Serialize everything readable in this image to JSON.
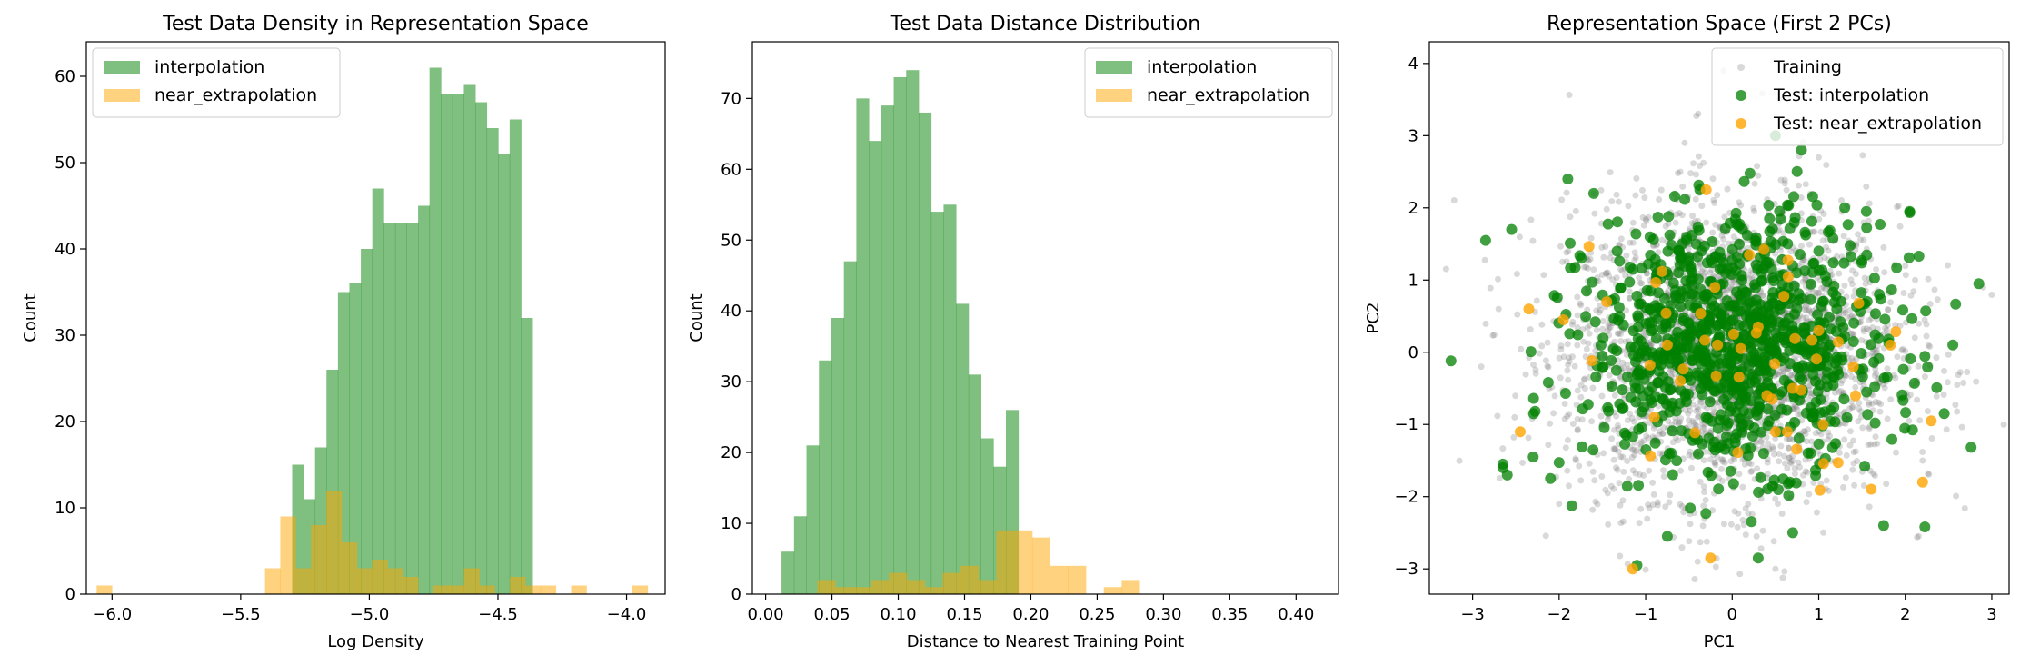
{
  "chart_data": [
    {
      "type": "histogram",
      "title": "Test Data Density in Representation Space",
      "xlabel": "Log Density",
      "ylabel": "Count",
      "xlim": [
        -6.1,
        -3.85
      ],
      "ylim": [
        0,
        64
      ],
      "xticks": [
        -6.0,
        -5.5,
        -5.0,
        -4.5,
        -4.0
      ],
      "xtick_labels": [
        "−6.0",
        "−5.5",
        "−5.0",
        "−4.5",
        "−4.0"
      ],
      "yticks": [
        0,
        10,
        20,
        30,
        40,
        50,
        60
      ],
      "ytick_labels": [
        "0",
        "10",
        "20",
        "30",
        "40",
        "50",
        "60"
      ],
      "legend_position": "top-left",
      "series": [
        {
          "name": "interpolation",
          "color": "#008000",
          "bin_start": -5.3,
          "bin_width": 0.0445,
          "values": [
            15,
            11,
            17,
            26,
            35,
            36,
            40,
            47,
            43,
            43,
            43,
            45,
            61,
            58,
            58,
            59,
            57,
            54,
            51,
            55,
            32
          ]
        },
        {
          "name": "near_extrapolation",
          "color": "#FFA500",
          "bin_start": -6.06,
          "bin_width": 0.0595,
          "values": [
            1,
            0,
            0,
            0,
            0,
            0,
            0,
            0,
            0,
            0,
            0,
            3,
            9,
            3,
            8,
            12,
            6,
            3,
            4,
            3,
            2,
            0,
            1,
            1,
            3,
            1,
            0,
            2,
            1,
            1,
            0,
            1,
            0,
            0,
            0,
            1
          ]
        }
      ]
    },
    {
      "type": "histogram",
      "title": "Test Data Distance Distribution",
      "xlabel": "Distance to Nearest Training Point",
      "ylabel": "Count",
      "xlim": [
        -0.01,
        0.432
      ],
      "ylim": [
        0,
        78
      ],
      "xticks": [
        0.0,
        0.05,
        0.1,
        0.15,
        0.2,
        0.25,
        0.3,
        0.35,
        0.4
      ],
      "xtick_labels": [
        "0.00",
        "0.05",
        "0.10",
        "0.15",
        "0.20",
        "0.25",
        "0.30",
        "0.35",
        "0.40"
      ],
      "yticks": [
        0,
        10,
        20,
        30,
        40,
        50,
        60,
        70
      ],
      "ytick_labels": [
        "0",
        "10",
        "20",
        "30",
        "40",
        "50",
        "60",
        "70"
      ],
      "legend_position": "top-right",
      "series": [
        {
          "name": "interpolation",
          "color": "#008000",
          "bin_start": 0.012,
          "bin_width": 0.0094,
          "values": [
            6,
            11,
            21,
            33,
            39,
            47,
            70,
            64,
            69,
            73,
            74,
            68,
            54,
            55,
            41,
            31,
            22,
            18,
            26
          ]
        },
        {
          "name": "near_extrapolation",
          "color": "#FFA500",
          "bin_start": 0.012,
          "bin_width": 0.0135,
          "values": [
            0,
            0,
            2,
            1,
            1,
            2,
            3,
            2,
            1,
            3,
            4,
            2,
            9,
            9,
            8,
            4,
            4,
            0,
            1,
            2
          ]
        }
      ]
    },
    {
      "type": "scatter",
      "title": "Representation Space (First 2 PCs)",
      "xlabel": "PC1",
      "ylabel": "PC2",
      "xlim": [
        -3.5,
        3.2
      ],
      "ylim": [
        -3.35,
        4.3
      ],
      "xticks": [
        -3,
        -2,
        -1,
        0,
        1,
        2,
        3
      ],
      "xtick_labels": [
        "−3",
        "−2",
        "−1",
        "0",
        "1",
        "2",
        "3"
      ],
      "yticks": [
        -3,
        -2,
        -1,
        0,
        1,
        2,
        3,
        4
      ],
      "ytick_labels": [
        "−3",
        "−2",
        "−1",
        "0",
        "1",
        "2",
        "3",
        "4"
      ],
      "legend_position": "top-right",
      "series": [
        {
          "name": "Training",
          "color": "#808080",
          "count": 3000,
          "center": [
            0,
            0
          ],
          "sd": [
            0.95,
            1.0
          ],
          "points": [
            [
              -0.1,
              3.9
            ],
            [
              0.55,
              3.5
            ],
            [
              -0.55,
              2.9
            ],
            [
              1.0,
              2.7
            ],
            [
              -1.6,
              2.2
            ],
            [
              2.9,
              0.9
            ],
            [
              2.6,
              -0.45
            ],
            [
              -2.9,
              -0.2
            ],
            [
              -2.7,
              0.6
            ],
            [
              0.5,
              -3.0
            ],
            [
              -0.4,
              -2.9
            ],
            [
              2.2,
              -1.5
            ],
            [
              -2.0,
              -2.1
            ]
          ]
        },
        {
          "name": "Test: interpolation",
          "color": "#008000",
          "count": 1000,
          "center": [
            0.05,
            0.15
          ],
          "sd": [
            0.85,
            0.85
          ],
          "points": [
            [
              -3.25,
              -0.12
            ],
            [
              2.85,
              0.95
            ],
            [
              -2.85,
              1.55
            ],
            [
              -2.55,
              1.7
            ],
            [
              -1.9,
              2.4
            ],
            [
              -1.6,
              2.2
            ],
            [
              -2.65,
              -1.55
            ],
            [
              -2.65,
              -1.6
            ],
            [
              -2.6,
              -1.7
            ],
            [
              -1.1,
              -2.95
            ],
            [
              -0.75,
              -2.55
            ],
            [
              0.3,
              -2.85
            ],
            [
              0.7,
              -2.5
            ],
            [
              1.75,
              -2.4
            ],
            [
              2.55,
              0.1
            ],
            [
              2.45,
              -0.85
            ],
            [
              0.5,
              3.0
            ],
            [
              0.8,
              2.8
            ],
            [
              1.3,
              2.0
            ],
            [
              1.55,
              1.95
            ],
            [
              2.05,
              1.95
            ],
            [
              -2.1,
              -1.75
            ],
            [
              -2.3,
              -1.45
            ]
          ]
        },
        {
          "name": "Test: near_extrapolation",
          "color": "#FFA500",
          "count": 60,
          "center": [
            0.1,
            0.05
          ],
          "sd": [
            0.95,
            0.9
          ],
          "points": [
            [
              -1.15,
              -3.0
            ],
            [
              -0.25,
              -2.85
            ],
            [
              2.2,
              -1.8
            ],
            [
              2.3,
              -0.95
            ],
            [
              -2.45,
              -1.1
            ],
            [
              -2.35,
              0.6
            ],
            [
              -1.95,
              0.45
            ],
            [
              -1.45,
              0.7
            ],
            [
              1.0,
              0.3
            ],
            [
              0.7,
              -0.5
            ],
            [
              -0.3,
              2.25
            ],
            [
              0.1,
              0.05
            ],
            [
              0.4,
              -0.6
            ],
            [
              -0.6,
              -0.4
            ],
            [
              0.2,
              1.35
            ],
            [
              0.5,
              -1.1
            ],
            [
              -0.9,
              -0.9
            ],
            [
              1.4,
              -0.2
            ],
            [
              -0.2,
              0.9
            ],
            [
              1.05,
              -1.0
            ],
            [
              0.3,
              0.35
            ],
            [
              -0.75,
              0.1
            ]
          ]
        }
      ]
    }
  ]
}
